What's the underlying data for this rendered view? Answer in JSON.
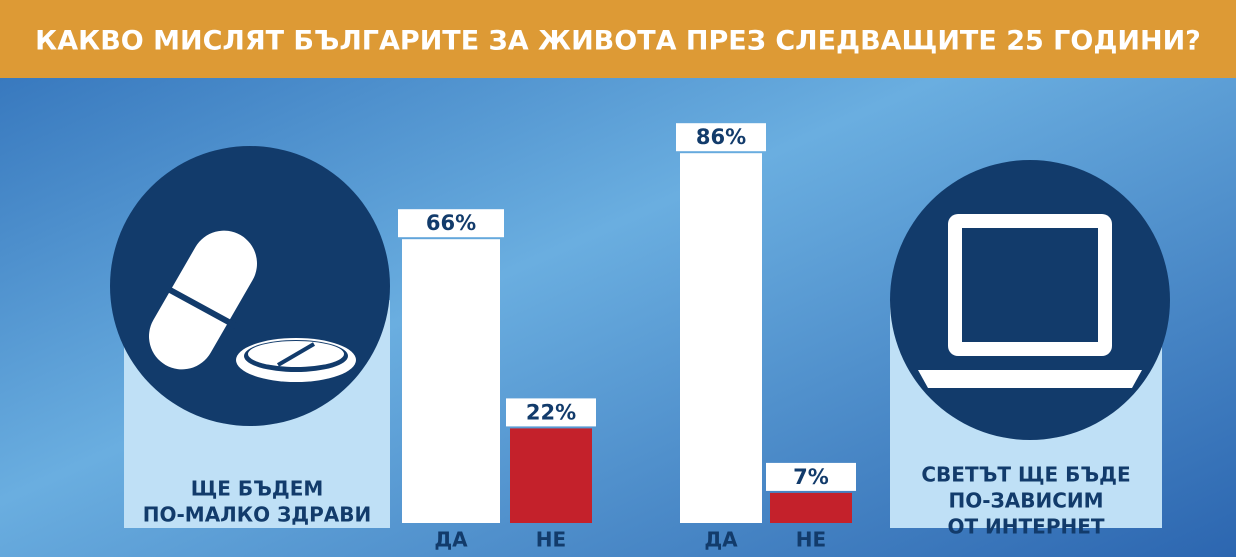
{
  "title": "КАКВО МИСЛЯТ БЪЛГАРИТЕ ЗА ЖИВОТА ПРЕЗ СЛЕДВАЩИТЕ 25 ГОДИНИ?",
  "chart_data": [
    {
      "type": "bar",
      "title": [
        "ЩЕ БЪДЕМ",
        "ПО-МАЛКО ЗДРАВИ"
      ],
      "categories": [
        "ДА",
        "НЕ"
      ],
      "values": [
        66,
        22
      ],
      "value_labels": [
        "66%",
        "22%"
      ],
      "colors": [
        "#ffffff",
        "#c4212b"
      ]
    },
    {
      "type": "bar",
      "title": [
        "СВЕТЪТ ЩЕ БЪДЕ",
        "ПО-ЗАВИСИМ",
        "ОТ ИНТЕРНЕТ"
      ],
      "categories": [
        "ДА",
        "НЕ"
      ],
      "values": [
        86,
        7
      ],
      "value_labels": [
        "86%",
        "7%"
      ],
      "colors": [
        "#ffffff",
        "#c4212b"
      ]
    }
  ]
}
